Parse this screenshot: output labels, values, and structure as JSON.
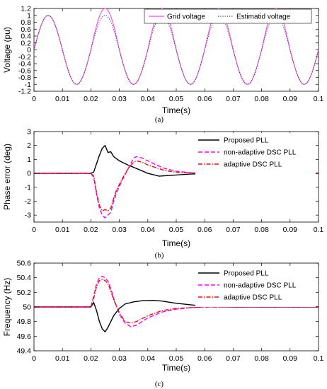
{
  "chart_data": [
    {
      "type": "line",
      "caption": "(a)",
      "xlabel": "Time(s)",
      "ylabel": "Voltage (pu)",
      "xlim": [
        0,
        0.1
      ],
      "ylim": [
        -1.2,
        1.2
      ],
      "xticks": [
        "0",
        "0.01",
        "0.02",
        "0.03",
        "0.04",
        "0.05",
        "0.06",
        "0.07",
        "0.08",
        "0.09",
        "0.1"
      ],
      "yticks": [
        "-1.2",
        "-1",
        "-0.8",
        "-0.6",
        "-0.4",
        "-0.2",
        "0",
        "0.2",
        "0.4",
        "0.6",
        "0.8",
        "1",
        "1.2"
      ],
      "legend_position": "top-right",
      "grid": false,
      "series": [
        {
          "name": "Grid voltage",
          "color": "#ff44ff",
          "style": "solid",
          "x": [
            0,
            0.005,
            0.01,
            0.015,
            0.02,
            0.025,
            0.03,
            0.035,
            0.04,
            0.045,
            0.05,
            0.055,
            0.06,
            0.065,
            0.07,
            0.075,
            0.08,
            0.085,
            0.09,
            0.095,
            0.1
          ],
          "y": [
            0,
            1.0,
            0,
            -1.0,
            0,
            1.2,
            0,
            -1.0,
            0,
            1.2,
            0,
            -1.0,
            0,
            1.2,
            0,
            -1.0,
            0,
            1.2,
            0,
            -1.0,
            0
          ]
        },
        {
          "name": "Estimatid voltage",
          "color": "#444444",
          "style": "dotted",
          "x": [
            0,
            0.005,
            0.01,
            0.015,
            0.02,
            0.025,
            0.03,
            0.035,
            0.04,
            0.045,
            0.05,
            0.055,
            0.06,
            0.065,
            0.07,
            0.075,
            0.08,
            0.085,
            0.09,
            0.095,
            0.1
          ],
          "y": [
            0,
            1.0,
            0,
            -1.0,
            0,
            1.0,
            0,
            -1.0,
            0,
            1.0,
            0,
            -1.0,
            0,
            1.0,
            0,
            -1.0,
            0,
            1.0,
            0,
            -1.0,
            0
          ]
        }
      ]
    },
    {
      "type": "line",
      "caption": "(b)",
      "xlabel": "Time(s)",
      "ylabel": "Phase error (deg)",
      "xlim": [
        0,
        0.1
      ],
      "ylim": [
        -3.5,
        3
      ],
      "xticks": [
        "0",
        "0.01",
        "0.02",
        "0.03",
        "0.04",
        "0.05",
        "0.06",
        "0.07",
        "0.08",
        "0.09",
        "0.1"
      ],
      "yticks": [
        "-3",
        "-2",
        "-1",
        "0",
        "1",
        "2",
        "3"
      ],
      "legend_position": "top-right",
      "grid": false,
      "series": [
        {
          "name": "Proposed PLL",
          "color": "#000000",
          "style": "solid",
          "x": [
            0,
            0.02,
            0.021,
            0.022,
            0.023,
            0.024,
            0.025,
            0.026,
            0.027,
            0.028,
            0.03,
            0.033,
            0.036,
            0.04,
            0.044,
            0.05,
            0.055,
            0.06,
            0.07,
            0.1
          ],
          "y": [
            0,
            0,
            0.1,
            0.7,
            1.3,
            1.8,
            2.0,
            1.5,
            1.55,
            1.2,
            0.9,
            0.6,
            0.35,
            0.0,
            -0.2,
            -0.12,
            -0.05,
            -0.02,
            0,
            0
          ]
        },
        {
          "name": "non-adaptive DSC PLL",
          "color": "#ff00ff",
          "style": "dashed",
          "x": [
            0,
            0.02,
            0.021,
            0.022,
            0.023,
            0.024,
            0.025,
            0.026,
            0.027,
            0.028,
            0.029,
            0.031,
            0.033,
            0.035,
            0.036,
            0.038,
            0.04,
            0.043,
            0.046,
            0.05,
            0.055,
            0.06,
            0.065,
            0.1
          ],
          "y": [
            0,
            0,
            -0.3,
            -1.5,
            -2.5,
            -3.0,
            -3.2,
            -3.0,
            -2.8,
            -2.0,
            -1.4,
            -0.5,
            0.3,
            1.1,
            1.2,
            1.1,
            0.9,
            0.6,
            0.35,
            0.15,
            0.05,
            0.02,
            0,
            0
          ]
        },
        {
          "name": "adaptive DSC PLL",
          "color": "#dd1111",
          "style": "dashdot",
          "x": [
            0,
            0.02,
            0.021,
            0.022,
            0.023,
            0.024,
            0.025,
            0.026,
            0.027,
            0.028,
            0.029,
            0.031,
            0.033,
            0.035,
            0.036,
            0.038,
            0.04,
            0.043,
            0.046,
            0.05,
            0.055,
            0.06,
            0.065,
            0.1
          ],
          "y": [
            0,
            0,
            -0.2,
            -1.4,
            -2.3,
            -2.7,
            -2.6,
            -2.7,
            -2.5,
            -1.8,
            -1.2,
            -0.4,
            0.3,
            0.8,
            0.9,
            0.8,
            0.6,
            0.4,
            0.2,
            0.08,
            0.03,
            0,
            0,
            0
          ]
        }
      ]
    },
    {
      "type": "line",
      "caption": "(c)",
      "xlabel": "Time(s)",
      "ylabel": "Frequency (Hz)",
      "xlim": [
        0,
        0.1
      ],
      "ylim": [
        49.4,
        50.6
      ],
      "xticks": [
        "0",
        "0.01",
        "0.02",
        "0.03",
        "0.04",
        "0.05",
        "0.06",
        "0.07",
        "0.08",
        "0.09",
        "0.1"
      ],
      "yticks": [
        "49.4",
        "49.6",
        "49.8",
        "50",
        "50.2",
        "50.4",
        "50.6"
      ],
      "legend_position": "top-right",
      "grid": false,
      "series": [
        {
          "name": "Proposed PLL",
          "color": "#000000",
          "style": "solid",
          "x": [
            0,
            0.02,
            0.021,
            0.022,
            0.023,
            0.024,
            0.025,
            0.026,
            0.027,
            0.028,
            0.03,
            0.032,
            0.035,
            0.038,
            0.042,
            0.045,
            0.05,
            0.055,
            0.06,
            0.07,
            0.1
          ],
          "y": [
            50,
            50,
            50.06,
            49.95,
            49.8,
            49.7,
            49.66,
            49.72,
            49.8,
            49.88,
            49.98,
            50.04,
            50.07,
            50.085,
            50.09,
            50.08,
            50.05,
            50.03,
            50.01,
            50,
            50
          ]
        },
        {
          "name": "non-adaptive DSC PLL",
          "color": "#ff00ff",
          "style": "dashed",
          "x": [
            0,
            0.02,
            0.021,
            0.022,
            0.023,
            0.024,
            0.025,
            0.026,
            0.027,
            0.028,
            0.03,
            0.032,
            0.034,
            0.036,
            0.04,
            0.045,
            0.05,
            0.055,
            0.06,
            0.1
          ],
          "y": [
            50,
            50,
            50.15,
            50.32,
            50.4,
            50.42,
            50.4,
            50.35,
            50.25,
            50.12,
            49.9,
            49.78,
            49.73,
            49.75,
            49.85,
            49.93,
            49.97,
            49.99,
            50,
            50
          ]
        },
        {
          "name": "adaptive DSC PLL",
          "color": "#dd1111",
          "style": "dashdot",
          "x": [
            0,
            0.02,
            0.021,
            0.022,
            0.023,
            0.024,
            0.025,
            0.026,
            0.027,
            0.028,
            0.03,
            0.032,
            0.034,
            0.036,
            0.04,
            0.045,
            0.05,
            0.055,
            0.06,
            0.1
          ],
          "y": [
            50,
            50,
            50.12,
            50.28,
            50.36,
            50.38,
            50.36,
            50.32,
            50.22,
            50.1,
            49.92,
            49.8,
            49.78,
            49.8,
            49.88,
            49.95,
            49.98,
            49.99,
            50,
            50
          ]
        }
      ]
    }
  ]
}
